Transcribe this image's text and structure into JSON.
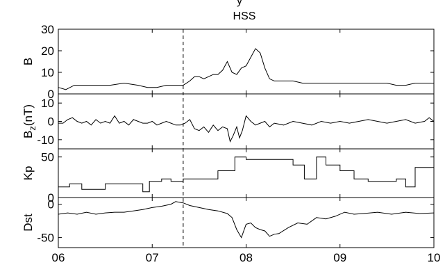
{
  "top_fragment": "y",
  "chart_data": {
    "type": "line",
    "title": "HSS",
    "shared_x": {
      "range": [
        6,
        10
      ],
      "ticks": [
        6,
        7,
        8,
        9,
        10
      ],
      "tick_labels": [
        "06",
        "07",
        "08",
        "09",
        "10"
      ]
    },
    "event_marker_x": 7.33,
    "panels": [
      {
        "ylabel": "B",
        "ylabel_sub": "",
        "ylabel_suffix": "",
        "ylim": [
          0,
          30
        ],
        "yticks": [
          0,
          10,
          20,
          30
        ],
        "series": [
          {
            "x": [
              6.0,
              6.08,
              6.17,
              6.25,
              6.4,
              6.55,
              6.7,
              6.85,
              6.95,
              7.05,
              7.15,
              7.25,
              7.33,
              7.4,
              7.45,
              7.5,
              7.55,
              7.6,
              7.65,
              7.7,
              7.75,
              7.8,
              7.85,
              7.9,
              7.95,
              8.0,
              8.05,
              8.1,
              8.15,
              8.2,
              8.25,
              8.3,
              8.4,
              8.5,
              8.6,
              8.7,
              8.8,
              8.9,
              9.0,
              9.1,
              9.2,
              9.3,
              9.4,
              9.5,
              9.6,
              9.7,
              9.8,
              9.9,
              10.0
            ],
            "y": [
              3,
              2,
              4,
              4,
              4,
              4,
              5,
              4,
              3,
              3,
              4,
              4,
              4,
              6,
              8,
              8,
              7,
              8,
              9,
              9,
              11,
              15,
              10,
              9,
              12,
              13,
              17,
              21,
              19,
              12,
              7,
              6,
              6,
              6,
              5,
              5,
              5,
              5,
              5,
              5,
              5,
              5,
              5,
              5,
              4,
              4,
              5,
              5,
              5
            ]
          }
        ]
      },
      {
        "ylabel": "B",
        "ylabel_sub": "z",
        "ylabel_suffix": "(nT)",
        "ylim": [
          -15,
          15
        ],
        "yticks": [
          -10,
          0,
          10
        ],
        "series": [
          {
            "x": [
              6.0,
              6.05,
              6.1,
              6.15,
              6.2,
              6.25,
              6.3,
              6.35,
              6.4,
              6.45,
              6.5,
              6.55,
              6.6,
              6.65,
              6.7,
              6.75,
              6.8,
              6.85,
              6.9,
              6.95,
              7.0,
              7.05,
              7.1,
              7.15,
              7.2,
              7.25,
              7.3,
              7.35,
              7.4,
              7.45,
              7.5,
              7.55,
              7.6,
              7.65,
              7.7,
              7.75,
              7.8,
              7.83,
              7.86,
              7.9,
              7.93,
              7.96,
              8.0,
              8.05,
              8.1,
              8.15,
              8.2,
              8.25,
              8.3,
              8.4,
              8.5,
              8.6,
              8.7,
              8.8,
              8.9,
              9.0,
              9.1,
              9.2,
              9.3,
              9.4,
              9.5,
              9.6,
              9.7,
              9.8,
              9.9,
              9.95,
              10.0
            ],
            "y": [
              -1,
              -1,
              1,
              2,
              0,
              -1,
              0,
              -2,
              1,
              -1,
              0,
              -1,
              3,
              -1,
              0,
              -2,
              1,
              0,
              -1,
              -1,
              0,
              -2,
              -1,
              0,
              -1,
              -2,
              -2,
              -1,
              1,
              -4,
              -5,
              -3,
              -6,
              -2,
              -5,
              -3,
              -4,
              -11,
              -8,
              -3,
              -9,
              -5,
              3,
              0,
              -2,
              -1,
              0,
              -3,
              -1,
              -2,
              0,
              -1,
              -2,
              0,
              -1,
              0,
              -1,
              0,
              1,
              0,
              -1,
              0,
              1,
              -1,
              0,
              2,
              0
            ]
          }
        ]
      },
      {
        "ylabel": "Kp",
        "ylabel_sub": "",
        "ylabel_suffix": "",
        "ylim": [
          0,
          60
        ],
        "yticks": [
          0,
          50
        ],
        "series": [
          {
            "x": [
              6.0,
              6.12,
              6.12,
              6.25,
              6.25,
              6.5,
              6.5,
              6.9,
              6.9,
              6.97,
              6.97,
              7.1,
              7.1,
              7.2,
              7.2,
              7.33,
              7.33,
              7.7,
              7.7,
              7.88,
              7.88,
              8.0,
              8.0,
              8.5,
              8.5,
              8.62,
              8.62,
              8.75,
              8.75,
              8.85,
              8.85,
              9.0,
              9.0,
              9.15,
              9.15,
              9.3,
              9.3,
              9.6,
              9.6,
              9.7,
              9.7,
              9.8,
              9.8,
              10.0
            ],
            "y": [
              13,
              13,
              17,
              17,
              10,
              10,
              17,
              17,
              7,
              7,
              20,
              20,
              23,
              23,
              20,
              20,
              23,
              23,
              33,
              33,
              50,
              50,
              47,
              47,
              40,
              40,
              23,
              23,
              50,
              50,
              40,
              40,
              33,
              33,
              23,
              23,
              20,
              20,
              23,
              23,
              13,
              13,
              37,
              37
            ]
          }
        ]
      },
      {
        "ylabel": "Dst",
        "ylabel_sub": "",
        "ylabel_suffix": "",
        "ylim": [
          -65,
          10
        ],
        "yticks": [
          -50,
          0
        ],
        "series": [
          {
            "x": [
              6.0,
              6.1,
              6.2,
              6.3,
              6.4,
              6.5,
              6.6,
              6.7,
              6.8,
              6.9,
              7.0,
              7.1,
              7.2,
              7.25,
              7.33,
              7.4,
              7.5,
              7.6,
              7.7,
              7.8,
              7.85,
              7.9,
              7.95,
              8.0,
              8.05,
              8.1,
              8.15,
              8.2,
              8.25,
              8.3,
              8.35,
              8.45,
              8.55,
              8.65,
              8.75,
              8.85,
              8.95,
              9.05,
              9.15,
              9.25,
              9.4,
              9.55,
              9.7,
              9.85,
              10.0
            ],
            "y": [
              -15,
              -13,
              -15,
              -12,
              -15,
              -13,
              -12,
              -12,
              -10,
              -8,
              -5,
              -3,
              0,
              4,
              2,
              -2,
              -5,
              -8,
              -10,
              -14,
              -20,
              -38,
              -50,
              -30,
              -28,
              -35,
              -38,
              -40,
              -48,
              -45,
              -44,
              -35,
              -28,
              -30,
              -20,
              -22,
              -18,
              -12,
              -15,
              -14,
              -12,
              -15,
              -12,
              -14,
              -13
            ]
          }
        ]
      }
    ]
  }
}
